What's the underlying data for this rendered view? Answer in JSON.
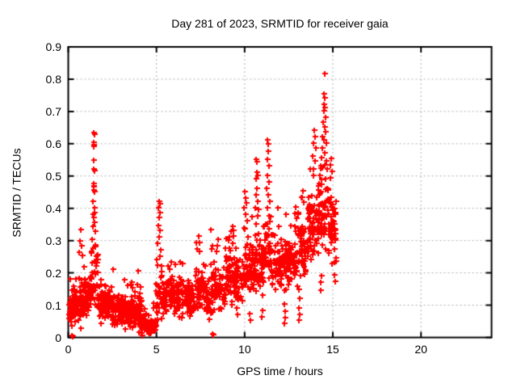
{
  "window": {
    "background": "#ffffff"
  },
  "chart_data": {
    "type": "scatter",
    "title": "Day 281 of 2023, SRMTID for receiver gaia",
    "xlabel": "GPS time / hours",
    "ylabel": "SRMTID / TECUs",
    "xlim": [
      0,
      24
    ],
    "ylim": [
      0,
      0.9
    ],
    "x_tick_values": [
      0,
      5,
      10,
      15,
      20
    ],
    "x_tick_labels": [
      "0",
      "5",
      "10",
      "15",
      "20"
    ],
    "y_tick_values": [
      0,
      0.1,
      0.2,
      0.3,
      0.4,
      0.5,
      0.6,
      0.7,
      0.8,
      0.9
    ],
    "y_tick_labels": [
      "0",
      "0.1",
      "0.2",
      "0.3",
      "0.4",
      "0.5",
      "0.6",
      "0.7",
      "0.8",
      "0.9"
    ],
    "grid": {
      "show": true,
      "color": "#b0b0b0",
      "style": "dotted"
    },
    "axis_color": "#000000",
    "marker": {
      "shape": "plus",
      "color": "#ff0000",
      "size": 7
    },
    "legend": null,
    "data_extent_hours": [
      0,
      15.2
    ],
    "seed": 20230281,
    "epoch_hours": 0.008333,
    "notable_points": [
      [
        1.42,
        0.635
      ],
      [
        1.47,
        0.63
      ],
      [
        1.44,
        0.605
      ],
      [
        1.43,
        0.598
      ],
      [
        1.46,
        0.593
      ],
      [
        1.45,
        0.55
      ],
      [
        1.42,
        0.522
      ],
      [
        1.47,
        0.518
      ],
      [
        1.44,
        0.478
      ],
      [
        1.43,
        0.47
      ],
      [
        1.46,
        0.468
      ],
      [
        1.45,
        0.458
      ],
      [
        1.48,
        0.452
      ],
      [
        1.41,
        0.422
      ],
      [
        1.5,
        0.402
      ],
      [
        1.38,
        0.382
      ],
      [
        1.44,
        0.372
      ],
      [
        1.47,
        0.356
      ],
      [
        1.4,
        0.345
      ],
      [
        1.52,
        0.33
      ],
      [
        1.35,
        0.305
      ],
      [
        1.55,
        0.282
      ],
      [
        1.3,
        0.262
      ],
      [
        1.58,
        0.252
      ],
      [
        1.33,
        0.232
      ],
      [
        1.6,
        0.222
      ],
      [
        0.7,
        0.335
      ],
      [
        0.65,
        0.3
      ],
      [
        0.75,
        0.285
      ],
      [
        0.6,
        0.265
      ],
      [
        0.8,
        0.255
      ],
      [
        0.2,
        0.006
      ],
      [
        0.27,
        0.004
      ],
      [
        8.18,
        0.012
      ],
      [
        8.24,
        0.008
      ],
      [
        5.15,
        0.422
      ],
      [
        5.18,
        0.415
      ],
      [
        5.12,
        0.402
      ],
      [
        5.2,
        0.386
      ],
      [
        5.16,
        0.372
      ],
      [
        5.1,
        0.346
      ],
      [
        5.22,
        0.332
      ],
      [
        5.14,
        0.312
      ],
      [
        5.08,
        0.292
      ],
      [
        5.25,
        0.272
      ],
      [
        5.19,
        0.252
      ],
      [
        5.05,
        0.225
      ],
      [
        5.28,
        0.205
      ],
      [
        7.38,
        0.315
      ],
      [
        7.45,
        0.295
      ],
      [
        7.32,
        0.275
      ],
      [
        8.5,
        0.305
      ],
      [
        8.45,
        0.285
      ],
      [
        9.3,
        0.345
      ],
      [
        9.25,
        0.33
      ],
      [
        9.35,
        0.315
      ],
      [
        10.0,
        0.452
      ],
      [
        10.05,
        0.432
      ],
      [
        10.1,
        0.418
      ],
      [
        9.95,
        0.402
      ],
      [
        10.04,
        0.382
      ],
      [
        10.15,
        0.362
      ],
      [
        10.0,
        0.336
      ],
      [
        10.2,
        0.312
      ],
      [
        10.35,
        0.055
      ],
      [
        10.3,
        0.075
      ],
      [
        10.95,
        0.065
      ],
      [
        11.0,
        0.085
      ],
      [
        10.65,
        0.552
      ],
      [
        10.7,
        0.545
      ],
      [
        10.68,
        0.512
      ],
      [
        10.72,
        0.502
      ],
      [
        10.63,
        0.492
      ],
      [
        10.7,
        0.462
      ],
      [
        10.66,
        0.442
      ],
      [
        10.75,
        0.422
      ],
      [
        10.6,
        0.402
      ],
      [
        10.73,
        0.376
      ],
      [
        10.67,
        0.352
      ],
      [
        11.3,
        0.612
      ],
      [
        11.35,
        0.6
      ],
      [
        11.32,
        0.576
      ],
      [
        11.28,
        0.552
      ],
      [
        11.37,
        0.532
      ],
      [
        11.3,
        0.502
      ],
      [
        11.4,
        0.482
      ],
      [
        11.25,
        0.462
      ],
      [
        11.33,
        0.442
      ],
      [
        11.42,
        0.422
      ],
      [
        11.27,
        0.402
      ],
      [
        11.38,
        0.376
      ],
      [
        11.2,
        0.352
      ],
      [
        12.25,
        0.045
      ],
      [
        12.3,
        0.062
      ],
      [
        12.28,
        0.082
      ],
      [
        12.26,
        0.105
      ],
      [
        12.9,
        0.405
      ],
      [
        12.85,
        0.385
      ],
      [
        12.95,
        0.37
      ],
      [
        13.08,
        0.055
      ],
      [
        13.1,
        0.072
      ],
      [
        13.06,
        0.092
      ],
      [
        13.12,
        0.122
      ],
      [
        13.09,
        0.148
      ],
      [
        13.3,
        0.455
      ],
      [
        13.25,
        0.435
      ],
      [
        13.35,
        0.42
      ],
      [
        13.95,
        0.642
      ],
      [
        14.0,
        0.622
      ],
      [
        13.9,
        0.602
      ],
      [
        14.05,
        0.586
      ],
      [
        13.85,
        0.562
      ],
      [
        14.0,
        0.546
      ],
      [
        13.92,
        0.522
      ],
      [
        13.88,
        0.502
      ],
      [
        14.55,
        0.818
      ],
      [
        14.5,
        0.756
      ],
      [
        14.52,
        0.742
      ],
      [
        14.48,
        0.722
      ],
      [
        14.56,
        0.712
      ],
      [
        14.5,
        0.702
      ],
      [
        14.6,
        0.682
      ],
      [
        14.45,
        0.666
      ],
      [
        14.53,
        0.652
      ],
      [
        14.58,
        0.636
      ],
      [
        14.42,
        0.622
      ],
      [
        14.5,
        0.612
      ],
      [
        14.62,
        0.602
      ],
      [
        14.4,
        0.586
      ],
      [
        14.55,
        0.572
      ],
      [
        14.35,
        0.556
      ],
      [
        14.65,
        0.546
      ],
      [
        14.3,
        0.532
      ],
      [
        14.68,
        0.522
      ],
      [
        14.25,
        0.502
      ],
      [
        14.6,
        0.492
      ],
      [
        14.2,
        0.476
      ],
      [
        14.66,
        0.462
      ],
      [
        14.3,
        0.452
      ],
      [
        14.32,
        0.146
      ],
      [
        14.3,
        0.172
      ],
      [
        14.34,
        0.192
      ],
      [
        14.9,
        0.555
      ],
      [
        14.85,
        0.535
      ],
      [
        14.95,
        0.515
      ],
      [
        14.88,
        0.495
      ],
      [
        15.12,
        0.175
      ],
      [
        15.08,
        0.195
      ]
    ],
    "bands": [
      [
        0.0,
        0.35,
        50,
        0.095,
        0.055
      ],
      [
        0.35,
        0.9,
        65,
        0.11,
        0.065
      ],
      [
        0.9,
        1.25,
        40,
        0.13,
        0.07
      ],
      [
        1.25,
        1.7,
        35,
        0.18,
        0.09
      ],
      [
        1.7,
        2.0,
        35,
        0.1,
        0.06
      ],
      [
        2.0,
        2.45,
        50,
        0.105,
        0.06
      ],
      [
        2.45,
        3.1,
        75,
        0.085,
        0.055
      ],
      [
        3.1,
        3.7,
        75,
        0.08,
        0.05
      ],
      [
        3.7,
        4.15,
        65,
        0.08,
        0.055
      ],
      [
        4.15,
        4.95,
        115,
        0.035,
        0.032
      ],
      [
        4.95,
        5.35,
        30,
        0.13,
        0.09
      ],
      [
        5.35,
        6.0,
        60,
        0.135,
        0.06
      ],
      [
        6.0,
        6.6,
        60,
        0.13,
        0.065
      ],
      [
        6.6,
        7.2,
        60,
        0.12,
        0.06
      ],
      [
        7.2,
        7.7,
        50,
        0.15,
        0.075
      ],
      [
        7.7,
        8.1,
        35,
        0.11,
        0.06
      ],
      [
        8.1,
        8.75,
        55,
        0.16,
        0.08
      ],
      [
        8.75,
        9.4,
        60,
        0.19,
        0.085
      ],
      [
        9.4,
        9.85,
        45,
        0.17,
        0.08
      ],
      [
        9.85,
        10.25,
        35,
        0.2,
        0.09
      ],
      [
        10.25,
        10.55,
        35,
        0.22,
        0.09
      ],
      [
        10.55,
        10.85,
        30,
        0.24,
        0.1
      ],
      [
        10.85,
        11.15,
        35,
        0.22,
        0.1
      ],
      [
        11.15,
        11.55,
        35,
        0.26,
        0.1
      ],
      [
        11.55,
        12.3,
        70,
        0.22,
        0.08
      ],
      [
        12.3,
        13.0,
        70,
        0.235,
        0.085
      ],
      [
        13.0,
        13.45,
        50,
        0.27,
        0.1
      ],
      [
        13.55,
        14.1,
        65,
        0.33,
        0.115
      ],
      [
        14.1,
        14.75,
        60,
        0.38,
        0.12
      ],
      [
        14.75,
        15.2,
        50,
        0.33,
        0.115
      ]
    ]
  }
}
